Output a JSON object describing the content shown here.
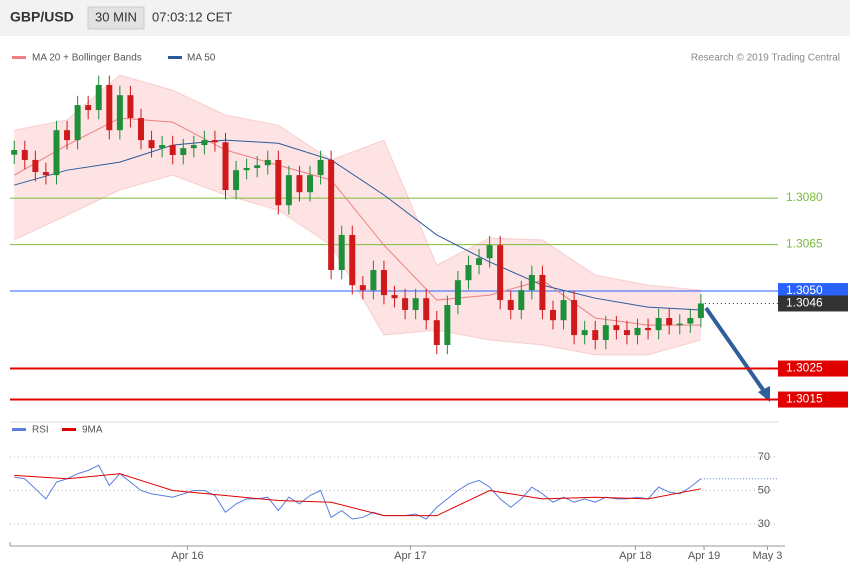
{
  "header": {
    "symbol": "GBP/USD",
    "interval": "30 MIN",
    "time": "07:03:12 CET"
  },
  "chart_data": [
    {
      "type": "candlestick",
      "copyright": "Research © 2019 Trading Central",
      "up_color": "#1f8f3a",
      "down_color": "#d0191b",
      "open": [
        1.3094,
        1.30955,
        1.30923,
        1.30884,
        1.30874,
        1.31019,
        1.30987,
        1.311,
        1.31084,
        1.31165,
        1.31019,
        1.31132,
        1.31058,
        1.30987,
        1.30961,
        1.30971,
        1.30939,
        1.30961,
        1.30971,
        1.30987,
        1.3098,
        1.30826,
        1.3089,
        1.30897,
        1.30906,
        1.30923,
        1.30777,
        1.30874,
        1.30819,
        1.30874,
        1.30923,
        1.30568,
        1.30681,
        1.30519,
        1.30503,
        1.30568,
        1.30487,
        1.30477,
        1.30439,
        1.30477,
        1.30406,
        1.30326,
        1.30455,
        1.30535,
        1.30584,
        1.30606,
        1.30648,
        1.30471,
        1.30439,
        1.30503,
        1.30552,
        1.30439,
        1.30406,
        1.30471,
        1.30358,
        1.30374,
        1.30342,
        1.3039,
        1.30374,
        1.30358,
        1.30381,
        1.30374,
        1.30413,
        1.3039,
        1.30395,
        1.30413
      ],
      "high": [
        1.30985,
        1.30985,
        1.30953,
        1.30914,
        1.31049,
        1.31049,
        1.3113,
        1.3113,
        1.31195,
        1.31195,
        1.31162,
        1.31162,
        1.31088,
        1.31017,
        1.31001,
        1.31001,
        1.30991,
        1.31001,
        1.31017,
        1.31017,
        1.3101,
        1.3092,
        1.30927,
        1.30936,
        1.30953,
        1.30953,
        1.30904,
        1.30904,
        1.30904,
        1.30953,
        1.30953,
        1.30711,
        1.30711,
        1.30549,
        1.30598,
        1.30598,
        1.30517,
        1.30507,
        1.30507,
        1.30507,
        1.30436,
        1.30485,
        1.30565,
        1.30614,
        1.30636,
        1.30678,
        1.30678,
        1.30501,
        1.30533,
        1.30582,
        1.30582,
        1.30469,
        1.30501,
        1.30501,
        1.30404,
        1.30404,
        1.3042,
        1.3042,
        1.30404,
        1.30411,
        1.30411,
        1.30443,
        1.30443,
        1.30425,
        1.30443,
        1.3049
      ],
      "low": [
        1.3091,
        1.30893,
        1.30854,
        1.30844,
        1.30844,
        1.30957,
        1.30957,
        1.31054,
        1.31054,
        1.30989,
        1.30989,
        1.31028,
        1.30957,
        1.30931,
        1.30931,
        1.30909,
        1.30909,
        1.30931,
        1.30941,
        1.3095,
        1.30796,
        1.30796,
        1.3086,
        1.30867,
        1.30876,
        1.30747,
        1.30747,
        1.30789,
        1.30789,
        1.30844,
        1.30538,
        1.30538,
        1.30489,
        1.30473,
        1.30473,
        1.30457,
        1.30447,
        1.30409,
        1.30409,
        1.30376,
        1.30296,
        1.30296,
        1.30425,
        1.30505,
        1.30554,
        1.30576,
        1.30441,
        1.30409,
        1.30409,
        1.30473,
        1.30409,
        1.30376,
        1.30376,
        1.30328,
        1.30328,
        1.30312,
        1.30312,
        1.30344,
        1.30328,
        1.30328,
        1.30344,
        1.30344,
        1.3036,
        1.3036,
        1.30365,
        1.30383
      ],
      "close": [
        1.30955,
        1.30923,
        1.30884,
        1.30874,
        1.31019,
        1.30987,
        1.311,
        1.31084,
        1.31165,
        1.31019,
        1.31132,
        1.31058,
        1.30987,
        1.30961,
        1.30971,
        1.30939,
        1.30961,
        1.30971,
        1.30987,
        1.3098,
        1.30826,
        1.3089,
        1.30897,
        1.30906,
        1.30923,
        1.30777,
        1.30874,
        1.30819,
        1.30874,
        1.30923,
        1.30568,
        1.30681,
        1.30519,
        1.30503,
        1.30568,
        1.30487,
        1.30477,
        1.30439,
        1.30477,
        1.30406,
        1.30326,
        1.30455,
        1.30535,
        1.30584,
        1.30606,
        1.30648,
        1.30471,
        1.30439,
        1.30503,
        1.30552,
        1.30439,
        1.30406,
        1.30471,
        1.30358,
        1.30374,
        1.30342,
        1.3039,
        1.30374,
        1.30358,
        1.30381,
        1.30374,
        1.30413,
        1.3039,
        1.30395,
        1.30413,
        1.3046
      ],
      "bands": {
        "name": "MA 20 + Bollinger Bands",
        "color": "#f08080",
        "fill": "#fde3e3",
        "x": [
          0,
          5,
          10,
          15,
          20,
          25,
          30,
          35,
          40,
          45,
          50,
          55,
          60,
          65
        ],
        "middle": [
          1.30874,
          1.30971,
          1.31058,
          1.31045,
          1.30955,
          1.30906,
          1.30858,
          1.30648,
          1.30471,
          1.30487,
          1.30535,
          1.30413,
          1.3039,
          1.3039
        ],
        "upper": [
          1.31019,
          1.31052,
          1.31197,
          1.31148,
          1.31068,
          1.31035,
          1.30923,
          1.30987,
          1.30584,
          1.30671,
          1.30665,
          1.30552,
          1.30519,
          1.30503
        ],
        "lower": [
          1.30665,
          1.30745,
          1.30826,
          1.30874,
          1.3081,
          1.30761,
          1.30648,
          1.30358,
          1.30374,
          1.30342,
          1.30326,
          1.30294,
          1.30294,
          1.30342
        ]
      },
      "series": [
        {
          "name": "MA 50",
          "color": "#2a5a9a",
          "x": [
            0,
            5,
            10,
            15,
            20,
            25,
            30,
            35,
            40,
            45,
            50,
            55,
            60,
            65
          ],
          "values": [
            1.30842,
            1.3089,
            1.30916,
            1.30971,
            1.30987,
            1.30977,
            1.30923,
            1.3081,
            1.30681,
            1.30594,
            1.30519,
            1.30477,
            1.30448,
            1.30439
          ]
        }
      ],
      "levels": [
        {
          "value": 1.308,
          "label": "1.3080",
          "color": "#7cbb3c",
          "style": "text"
        },
        {
          "value": 1.3065,
          "label": "1.3065",
          "color": "#7cbb3c",
          "style": "text"
        },
        {
          "value": 1.305,
          "label": "1.3050",
          "color": "#2962ff",
          "style": "box"
        },
        {
          "value": 1.3025,
          "label": "1.3025",
          "color": "#e00000",
          "style": "box"
        },
        {
          "value": 1.3015,
          "label": "1.3015",
          "color": "#e00000",
          "style": "box"
        }
      ],
      "last_price": {
        "value": 1.3046,
        "label": "1.3046"
      },
      "ylim": [
        1.30084,
        1.3131
      ],
      "xlim": [
        -0.4,
        72.3
      ],
      "xticks": [
        {
          "value": 16.4,
          "label": "Apr 16"
        },
        {
          "value": 37.5,
          "label": "Apr 17"
        },
        {
          "value": 58.8,
          "label": "Apr 18"
        },
        {
          "value": 65.3,
          "label": "Apr 19"
        },
        {
          "value": 71.3,
          "label": "May 3"
        }
      ]
    },
    {
      "type": "line",
      "x": [
        0,
        1,
        2,
        3,
        4,
        5,
        6,
        7,
        8,
        9,
        10,
        11,
        12,
        13,
        14,
        15,
        16,
        17,
        18,
        19,
        20,
        21,
        22,
        23,
        24,
        25,
        26,
        27,
        28,
        29,
        30,
        31,
        32,
        33,
        34,
        35,
        36,
        37,
        38,
        39,
        40,
        41,
        42,
        43,
        44,
        45,
        46,
        47,
        48,
        49,
        50,
        51,
        52,
        53,
        54,
        55,
        56,
        57,
        58,
        59,
        60,
        61,
        62,
        63,
        64,
        65
      ],
      "series": [
        {
          "name": "RSI",
          "color": "#5b7fe0",
          "x": [
            0,
            1,
            2,
            3,
            4,
            5,
            6,
            7,
            8,
            9,
            10,
            11,
            12,
            13,
            14,
            15,
            16,
            17,
            18,
            19,
            20,
            21,
            22,
            23,
            24,
            25,
            26,
            27,
            28,
            29,
            30,
            31,
            32,
            33,
            34,
            35,
            36,
            37,
            38,
            39,
            40,
            41,
            42,
            43,
            44,
            45,
            46,
            47,
            48,
            49,
            50,
            51,
            52,
            53,
            54,
            55,
            56,
            57,
            58,
            59,
            60,
            61,
            62,
            63,
            64,
            65
          ],
          "values": [
            58,
            57,
            51,
            45,
            55,
            57,
            60,
            62,
            65,
            53,
            60,
            55,
            50,
            48,
            47,
            46,
            48,
            50,
            50,
            47,
            37,
            42,
            45,
            45,
            46,
            38,
            46,
            42,
            47,
            50,
            34,
            38,
            33,
            34,
            37,
            35,
            35,
            35,
            36,
            33,
            40,
            45,
            50,
            54,
            56,
            52,
            45,
            40,
            45,
            52,
            48,
            43,
            46,
            43,
            45,
            43,
            46,
            45,
            45,
            46,
            45,
            52,
            49,
            48,
            52,
            57
          ]
        },
        {
          "name": "9MA",
          "color": "#e00000",
          "x": [
            0,
            5,
            10,
            15,
            20,
            25,
            30,
            35,
            40,
            45,
            50,
            55,
            60,
            65
          ],
          "values": [
            59,
            57,
            60,
            50,
            47,
            44,
            43,
            35,
            35,
            50,
            45,
            46,
            45,
            51
          ]
        }
      ],
      "ylim": [
        17.5,
        80.1
      ],
      "yticks": [
        70,
        50,
        30
      ]
    }
  ]
}
